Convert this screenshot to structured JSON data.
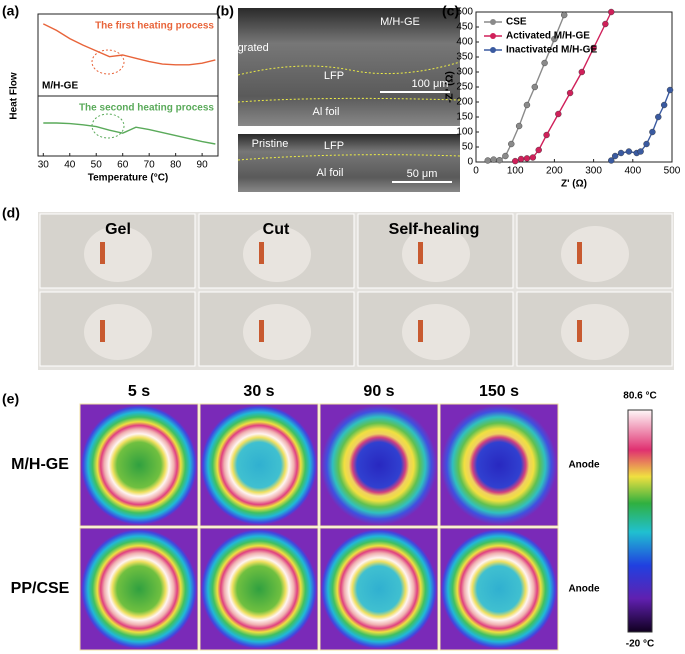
{
  "panel_labels": [
    "(a)",
    "(b)",
    "(c)",
    "(d)",
    "(e)"
  ],
  "chart_data": [
    {
      "type": "line",
      "ylabel": "Heat Flow",
      "annotation": "M/H-GE",
      "x": [
        30,
        35,
        40,
        45,
        50,
        55,
        60,
        65,
        70,
        75,
        80,
        85,
        90,
        95
      ],
      "xlim": [
        28,
        96
      ],
      "ylim": [
        0,
        10
      ],
      "series": [
        {
          "name": "The first heating process",
          "color": "#e8643a",
          "values": [
            8.8,
            8.0,
            7.0,
            6.2,
            5.5,
            4.8,
            5.0,
            4.6,
            4.2,
            3.9,
            3.8,
            3.8,
            4.0,
            4.4
          ]
        }
      ]
    },
    {
      "type": "line",
      "xlabel": "Temperature (°C)",
      "x": [
        30,
        35,
        40,
        45,
        50,
        55,
        60,
        65,
        70,
        75,
        80,
        85,
        90,
        95
      ],
      "xlim": [
        28,
        96
      ],
      "ylim": [
        0,
        10
      ],
      "xticks": [
        30,
        40,
        50,
        60,
        70,
        80,
        90
      ],
      "series": [
        {
          "name": "The second heating process",
          "color": "#5aaa5a",
          "values": [
            5.5,
            5.5,
            5.4,
            5.2,
            4.9,
            4.3,
            3.8,
            4.8,
            4.4,
            3.9,
            3.4,
            2.9,
            2.4,
            2.0
          ]
        }
      ]
    },
    {
      "type": "scatter",
      "xlabel": "Z' (Ω)",
      "ylabel": "-Z'' (Ω)",
      "legend": "upper left",
      "markers": true,
      "xlim": [
        0,
        500
      ],
      "ylim": [
        0,
        500
      ],
      "xticks": [
        0,
        100,
        200,
        300,
        400,
        500
      ],
      "yticks": [
        0,
        50,
        100,
        150,
        200,
        250,
        300,
        350,
        400,
        450,
        500
      ],
      "series": [
        {
          "name": "CSE",
          "color": "#8a8a8a",
          "x": [
            30,
            45,
            60,
            75,
            90,
            110,
            130,
            150,
            175,
            200,
            225
          ],
          "values": [
            5,
            8,
            6,
            20,
            60,
            120,
            190,
            250,
            330,
            410,
            490
          ]
        },
        {
          "name": "Activated M/H-GE",
          "color": "#d0205a",
          "x": [
            100,
            115,
            130,
            145,
            160,
            180,
            210,
            240,
            270,
            300,
            330,
            345
          ],
          "values": [
            3,
            10,
            12,
            15,
            40,
            90,
            160,
            230,
            300,
            380,
            460,
            500
          ]
        },
        {
          "name": "Inactivated M/H-GE",
          "color": "#3a5aa0",
          "x": [
            345,
            355,
            370,
            390,
            410,
            420,
            435,
            450,
            465,
            480,
            495
          ],
          "values": [
            5,
            20,
            30,
            35,
            30,
            35,
            60,
            100,
            150,
            190,
            240
          ]
        }
      ]
    }
  ],
  "sem": {
    "top": [
      "M/H-GE",
      "Integrated",
      "LFP",
      "100 μm",
      "Al foil"
    ],
    "bottom": [
      "Pristine",
      "LFP",
      "Al foil",
      "50 μm"
    ]
  },
  "photos": {
    "labels": [
      "Gel",
      "Cut",
      "Self-healing"
    ]
  },
  "thermal": {
    "times": [
      "5 s",
      "30 s",
      "90 s",
      "150 s"
    ],
    "rows": [
      "M/H-GE",
      "PP/CSE"
    ],
    "side": [
      "Anode",
      "Anode"
    ],
    "scale": [
      "80.6 °C",
      "-20 °C"
    ]
  }
}
